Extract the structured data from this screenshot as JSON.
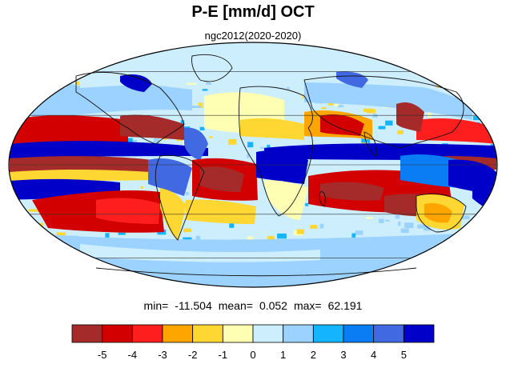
{
  "title": "P-E [mm/d] OCT",
  "subtitle": "ngc2012(2020-2020)",
  "stats": {
    "min_label": "min=",
    "min_value": "-11.504",
    "mean_label": "mean=",
    "mean_value": "0.052",
    "max_label": "max=",
    "max_value": "62.191"
  },
  "map": {
    "projection": "mollweide",
    "grid": true
  },
  "colorbar": {
    "colors": [
      "#a52a2a",
      "#d20000",
      "#ff1e1e",
      "#ffa500",
      "#ffd732",
      "#ffffb4",
      "#cdeefd",
      "#9bd2ff",
      "#14b4ff",
      "#0a7df5",
      "#4169e1",
      "#0000c8"
    ],
    "tick_labels": [
      "-5",
      "-4",
      "-3",
      "-2",
      "-1",
      "0",
      "1",
      "2",
      "3",
      "4",
      "5"
    ]
  }
}
